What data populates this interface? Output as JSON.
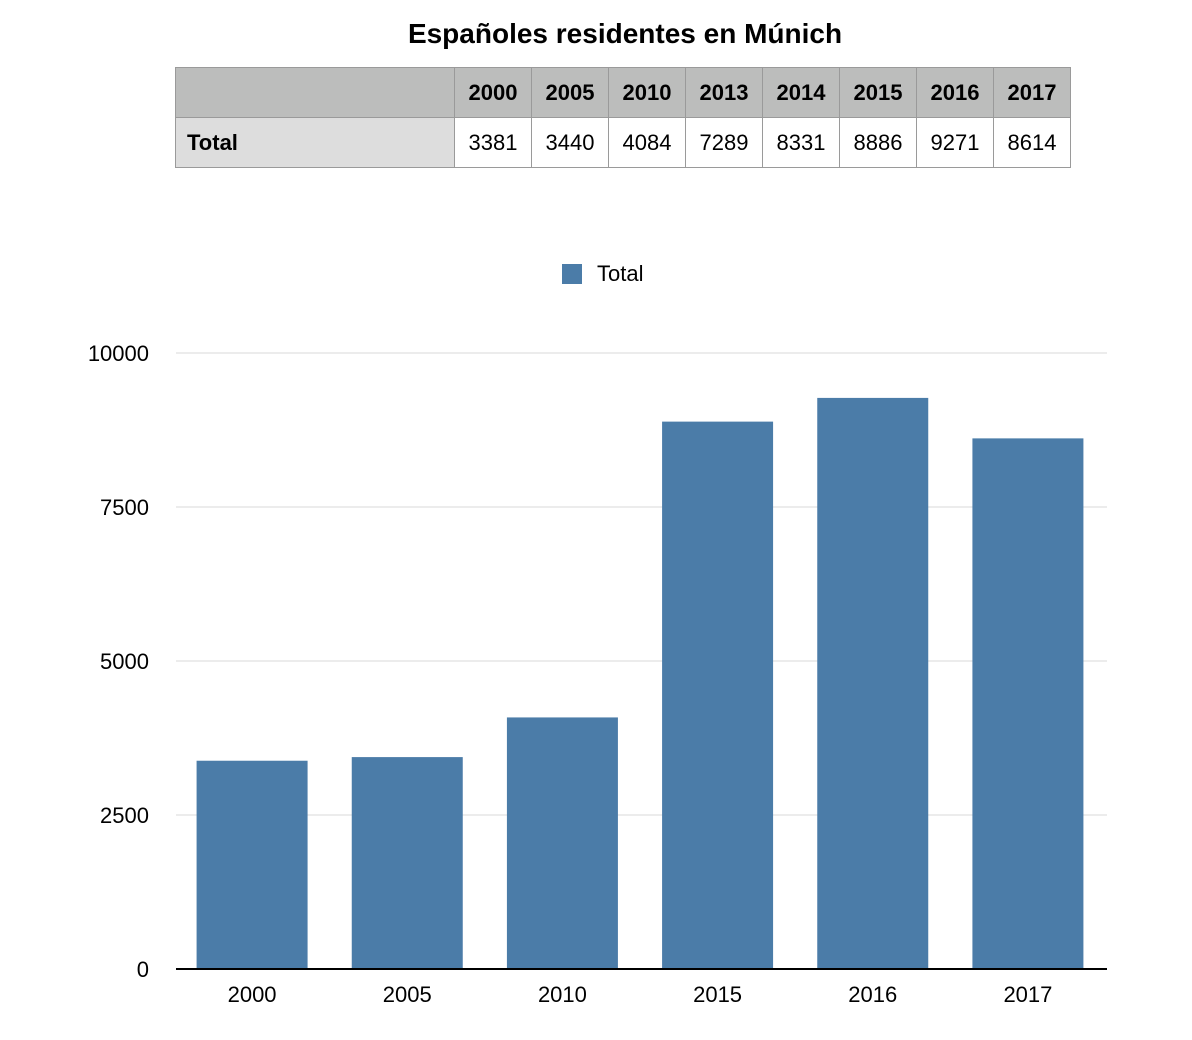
{
  "title": "Españoles residentes en Múnich",
  "table": {
    "columns": [
      "2000",
      "2005",
      "2010",
      "2013",
      "2014",
      "2015",
      "2016",
      "2017"
    ],
    "rows": [
      {
        "label": "Total",
        "values": [
          "3381",
          "3440",
          "4084",
          "7289",
          "8331",
          "8886",
          "9271",
          "8614"
        ]
      }
    ]
  },
  "colors": {
    "bar": "#4b7ca8",
    "grid": "#d9d9d9",
    "axis": "#000000"
  },
  "chart_data": {
    "type": "bar",
    "title": "Españoles residentes en Múnich",
    "categories": [
      "2000",
      "2005",
      "2010",
      "2015",
      "2016",
      "2017"
    ],
    "series": [
      {
        "name": "Total",
        "values": [
          3381,
          3440,
          4084,
          8886,
          9271,
          8614
        ]
      }
    ],
    "ylim": [
      0,
      10000
    ],
    "yticks": [
      0,
      2500,
      5000,
      7500,
      10000
    ],
    "xlabel": "",
    "ylabel": "",
    "grid": true,
    "legend": "top-center"
  }
}
